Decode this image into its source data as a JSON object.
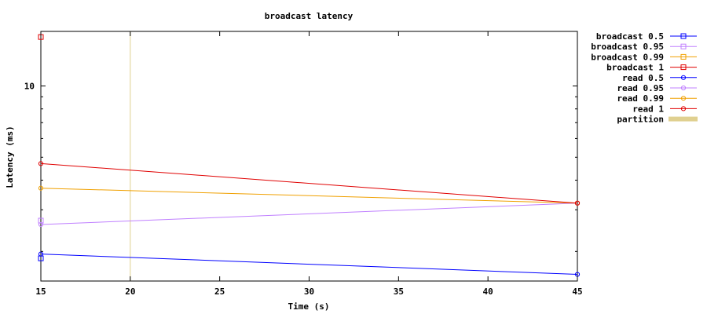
{
  "chart_data": {
    "type": "line",
    "title": "broadcast latency",
    "xlabel": "Time (s)",
    "ylabel": "Latency (ms)",
    "y_scale": "log",
    "xlim": [
      15,
      45
    ],
    "ylim": [
      1.5,
      17
    ],
    "x_ticks": [
      15,
      20,
      25,
      30,
      35,
      40,
      45
    ],
    "x_tick_labels": [
      "15",
      "20",
      "25",
      "30",
      "35",
      "40",
      "45"
    ],
    "y_ticks": [
      10
    ],
    "y_tick_labels": [
      "10"
    ],
    "grid": false,
    "legend_position": "outside-right",
    "series": [
      {
        "name": "broadcast 0.5",
        "color": "#0000ff",
        "marker": "square",
        "points": [
          [
            15,
            1.87
          ]
        ]
      },
      {
        "name": "broadcast 0.95",
        "color": "#c080ff",
        "marker": "square",
        "points": [
          [
            15,
            2.7
          ]
        ]
      },
      {
        "name": "broadcast 0.99",
        "color": "#f0a000",
        "marker": "square",
        "points": []
      },
      {
        "name": "broadcast 1",
        "color": "#e00000",
        "marker": "square",
        "points": [
          [
            15,
            16.1
          ]
        ]
      },
      {
        "name": "read 0.5",
        "color": "#0000ff",
        "marker": "circle",
        "points": [
          [
            15,
            1.95
          ],
          [
            45,
            1.6
          ]
        ]
      },
      {
        "name": "read 0.95",
        "color": "#c080ff",
        "marker": "circle",
        "points": [
          [
            15,
            2.6
          ],
          [
            45,
            3.2
          ]
        ]
      },
      {
        "name": "read 0.99",
        "color": "#f0a000",
        "marker": "circle",
        "points": [
          [
            15,
            3.7
          ],
          [
            45,
            3.2
          ]
        ]
      },
      {
        "name": "read 1",
        "color": "#e00000",
        "marker": "circle",
        "points": [
          [
            15,
            4.7
          ],
          [
            45,
            3.2
          ]
        ]
      }
    ],
    "partition": {
      "name": "partition",
      "color": "#e0d090",
      "x": [
        20
      ]
    }
  }
}
